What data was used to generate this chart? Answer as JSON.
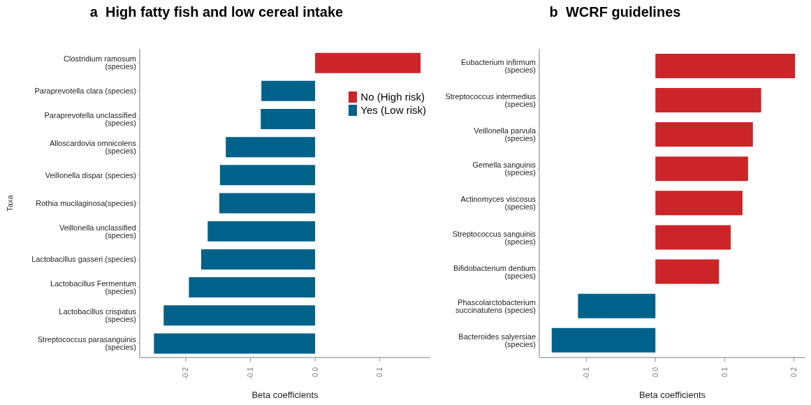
{
  "chart_data": [
    {
      "type": "bar",
      "orientation": "horizontal",
      "stacked": true,
      "title": "a  High fatty fish and low cereal intake",
      "xlabel": "Beta coefficients",
      "ylabel": "Taxa",
      "legend": "right",
      "categories": [
        "Clostridium ramosum (species)",
        "Paraprevotella clara (species)",
        "Paraprevotella unclassified (species)",
        "Alloscardovia omnicolens (species)",
        "Veillonella dispar (species)",
        "Rothia mucilaginosa(species)",
        "Veillonella unclassified (species)",
        "Lactobacillus  gasseri (species)",
        "Lactobacillus Fermentum (species)",
        "Lactobacillus crispatus (species)",
        "Streptococcus parasanguinis (species)"
      ],
      "series": [
        {
          "name": "No (High risk)",
          "color": "#cc2529",
          "values": [
            0.163,
            null,
            null,
            null,
            null,
            null,
            null,
            null,
            null,
            null,
            null
          ]
        },
        {
          "name": "Yes (Low risk)",
          "color": "#00628b",
          "values": [
            null,
            -0.083,
            -0.084,
            -0.138,
            -0.147,
            -0.148,
            -0.166,
            -0.176,
            -0.195,
            -0.234,
            -0.249
          ]
        }
      ],
      "xlim": [
        -0.271,
        0.178
      ],
      "xticks": [
        -0.2,
        -0.1,
        {
          "value": 0,
          "label": "0.0"
        },
        0.1
      ]
    },
    {
      "type": "bar",
      "orientation": "horizontal",
      "title": "b  WCRF guidelines",
      "xlabel": "Beta coefficients",
      "categories": [
        "Eubacterium infirmum (species)",
        "Streptococcus intermedius (species)",
        "Veillonella parvula (species)",
        "Gemella sanguinis (species)",
        "Actinomyces viscosus (species)",
        "Streptococcus sanguinis (species)",
        "Bifidobacterium dentium (species)",
        "Phascolarctobacterium succinatutens (species)",
        "Bacteroides salyersiae  (species)"
      ],
      "values": [
        0.202,
        0.153,
        0.141,
        0.134,
        0.126,
        0.109,
        0.092,
        -0.112,
        -0.15
      ],
      "colors": [
        "#cc2529",
        "#cc2529",
        "#cc2529",
        "#cc2529",
        "#cc2529",
        "#cc2529",
        "#cc2529",
        "#00628b",
        "#00628b"
      ],
      "xlim": [
        -0.168,
        0.217
      ],
      "xticks": [
        -0.1,
        {
          "value": 0,
          "label": "0.0"
        },
        0.1,
        0.2
      ]
    }
  ]
}
